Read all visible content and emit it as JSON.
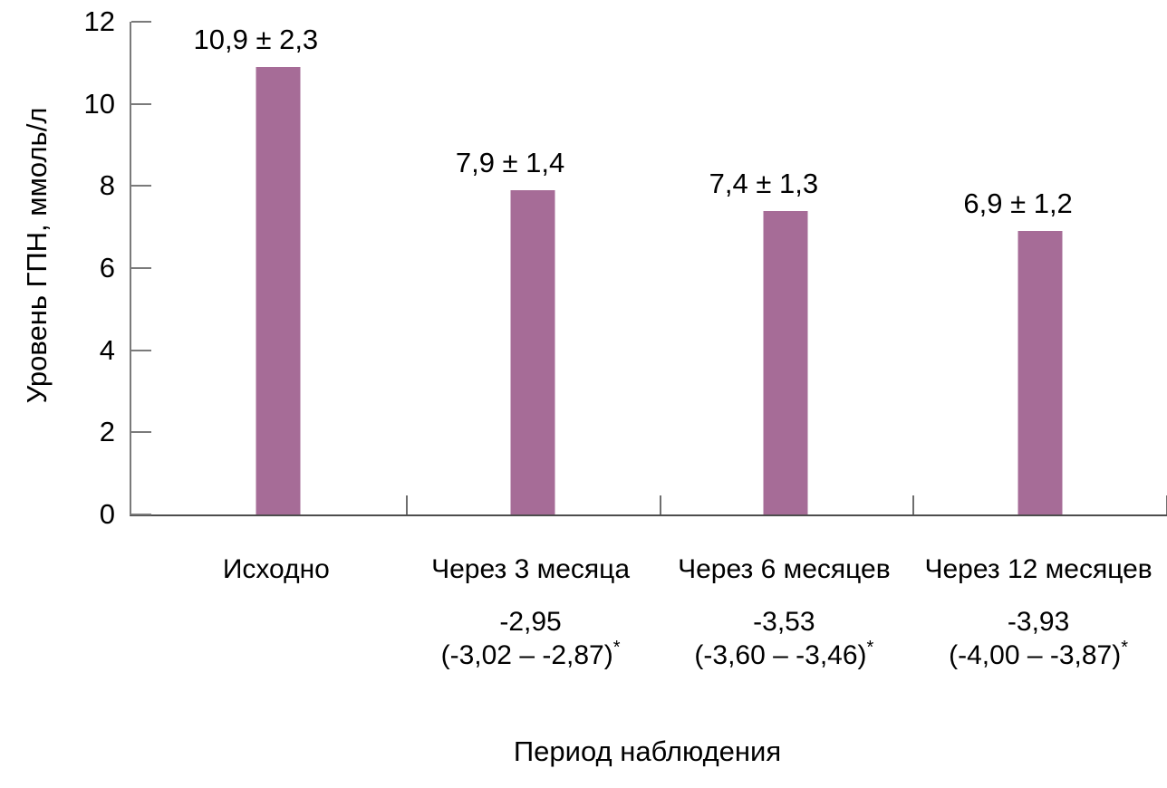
{
  "chart_data": {
    "type": "bar",
    "xlabel": "Период наблюдения",
    "ylabel": "Уровень ГПН, ммоль/л",
    "ylim": [
      0,
      12
    ],
    "yticks": [
      0,
      2,
      4,
      6,
      8,
      10,
      12
    ],
    "categories": [
      "Исходно",
      "Через 3 месяца",
      "Через 6 месяцев",
      "Через 12 месяцев"
    ],
    "values": [
      10.9,
      7.9,
      7.4,
      6.9
    ],
    "std_devs": [
      2.3,
      1.4,
      1.3,
      1.2
    ],
    "value_labels": [
      "10,9 ± 2,3",
      "7,9 ± 1,4",
      "7,4 ± 1,3",
      "6,9 ± 1,2"
    ],
    "change_from_baseline": [
      null,
      "-2,95",
      "-3,53",
      "-3,93"
    ],
    "confidence_intervals": [
      null,
      "(-3,02 – -2,87)",
      "(-3,60 – -3,46)",
      "(-4,00 – -3,87)"
    ],
    "stars": [
      "",
      "*",
      "*",
      "*"
    ],
    "bar_color": "#a66c97",
    "axis_color": "#4d4d4d",
    "tick_color": "#7a7a7a",
    "grid": "off",
    "legend": "none"
  }
}
